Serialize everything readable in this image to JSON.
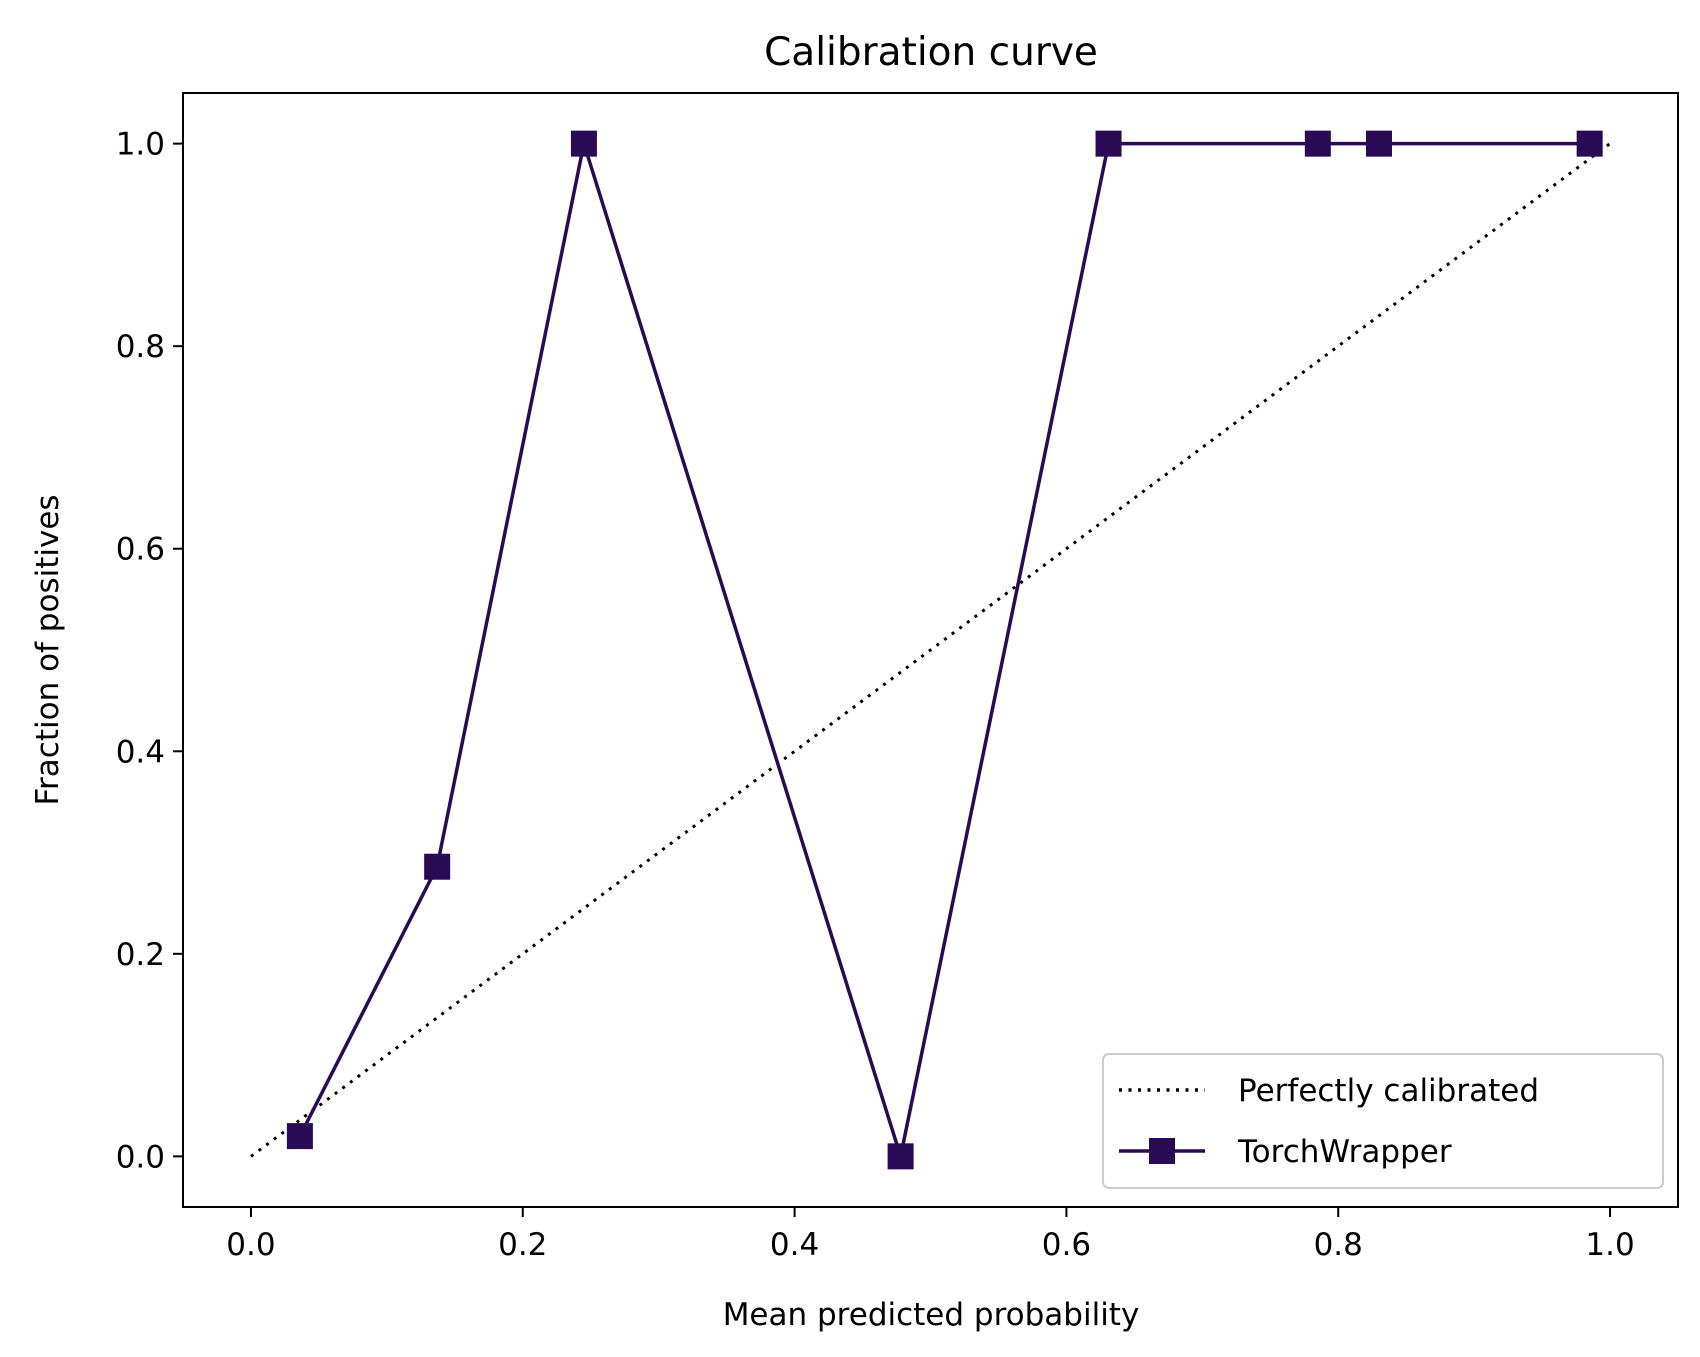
{
  "chart_data": {
    "type": "line",
    "title": "Calibration curve",
    "xlabel": "Mean predicted probability",
    "ylabel": "Fraction of positives",
    "xlim": [
      -0.05,
      1.05
    ],
    "ylim": [
      -0.05,
      1.05
    ],
    "xticks": [
      "0.0",
      "0.2",
      "0.4",
      "0.6",
      "0.8",
      "1.0"
    ],
    "yticks": [
      "0.0",
      "0.2",
      "0.4",
      "0.6",
      "0.8",
      "1.0"
    ],
    "grid": false,
    "legend_position": "lower-right",
    "series": [
      {
        "name": "Perfectly calibrated",
        "style": "dotted",
        "marker": "none",
        "color": "#000000",
        "x": [
          0.0,
          1.0
        ],
        "y": [
          0.0,
          1.0
        ]
      },
      {
        "name": "TorchWrapper",
        "style": "solid",
        "marker": "square",
        "color": "#2a0a55",
        "x": [
          0.036,
          0.137,
          0.245,
          0.478,
          0.631,
          0.785,
          0.83,
          0.985
        ],
        "y": [
          0.02,
          0.286,
          1.0,
          0.0,
          1.0,
          1.0,
          1.0,
          1.0
        ]
      }
    ]
  }
}
